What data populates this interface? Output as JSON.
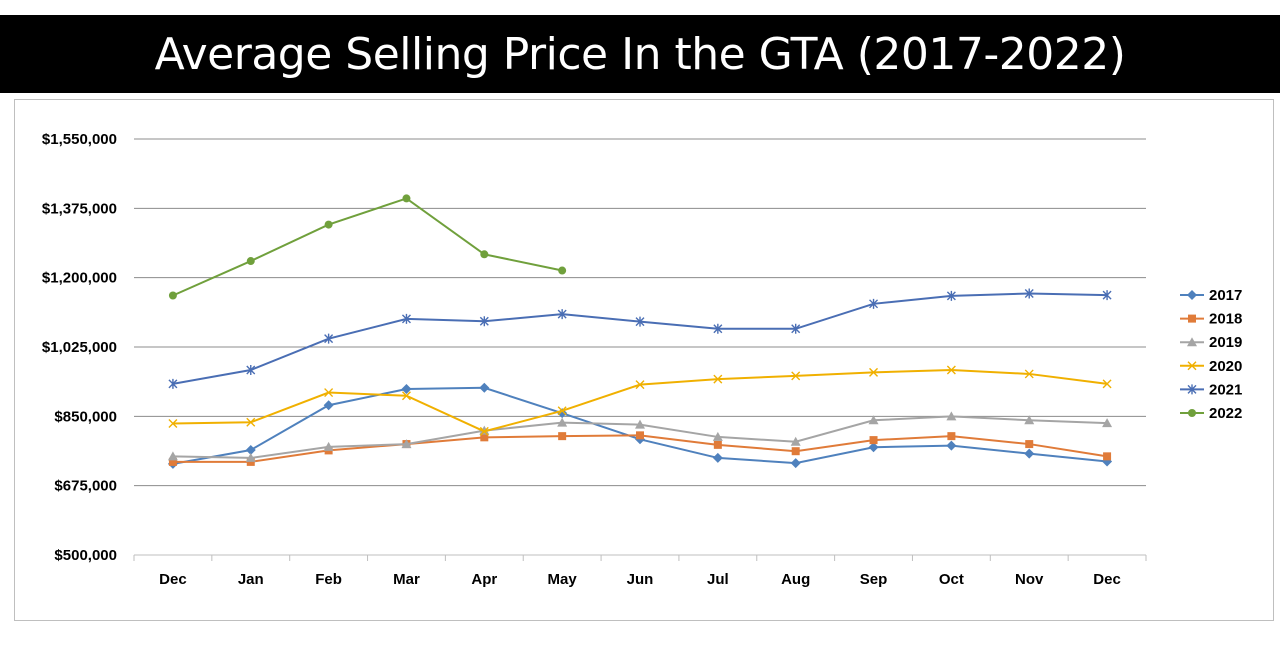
{
  "chart_data": {
    "type": "line",
    "title": "Average Selling Price In the GTA (2017-2022)",
    "xlabel": "",
    "ylabel": "",
    "categories": [
      "Dec",
      "Jan",
      "Feb",
      "Mar",
      "Apr",
      "May",
      "Jun",
      "Jul",
      "Aug",
      "Sep",
      "Oct",
      "Nov",
      "Dec"
    ],
    "ylim": [
      500000,
      1550000
    ],
    "yticks": [
      500000,
      675000,
      850000,
      1025000,
      1200000,
      1375000,
      1550000
    ],
    "ytick_labels": [
      "$500,000",
      "$675,000",
      "$850,000",
      "$1,025,000",
      "$1,200,000",
      "$1,375,000",
      "$1,550,000"
    ],
    "grid": "horizontal",
    "legend_position": "right",
    "series": [
      {
        "name": "2017",
        "color": "#4f81bd",
        "marker": "diamond",
        "values": [
          730000,
          765000,
          878000,
          919000,
          922000,
          858000,
          792000,
          745000,
          732000,
          772000,
          776000,
          756000,
          736000
        ]
      },
      {
        "name": "2018",
        "color": "#e07b39",
        "marker": "square",
        "values": [
          735000,
          735000,
          764000,
          780000,
          797000,
          800000,
          802000,
          778000,
          762000,
          790000,
          800000,
          780000,
          749000
        ]
      },
      {
        "name": "2019",
        "color": "#a5a5a5",
        "marker": "triangle",
        "values": [
          749000,
          745000,
          773000,
          780000,
          814000,
          834000,
          829000,
          798000,
          786000,
          840000,
          850000,
          840000,
          833000
        ]
      },
      {
        "name": "2020",
        "color": "#f0b000",
        "marker": "x",
        "values": [
          832000,
          835000,
          910000,
          902000,
          812000,
          864000,
          930000,
          944000,
          952000,
          961000,
          967000,
          957000,
          932000
        ]
      },
      {
        "name": "2021",
        "color": "#4a6eb4",
        "marker": "asterisk",
        "values": [
          932000,
          967000,
          1046000,
          1096000,
          1090000,
          1108000,
          1089000,
          1071000,
          1071000,
          1134000,
          1154000,
          1160000,
          1156000
        ]
      },
      {
        "name": "2022",
        "color": "#70a03c",
        "marker": "circle",
        "values": [
          1155000,
          1242000,
          1334000,
          1400000,
          1259000,
          1218000,
          null,
          null,
          null,
          null,
          null,
          null,
          null
        ]
      }
    ]
  }
}
